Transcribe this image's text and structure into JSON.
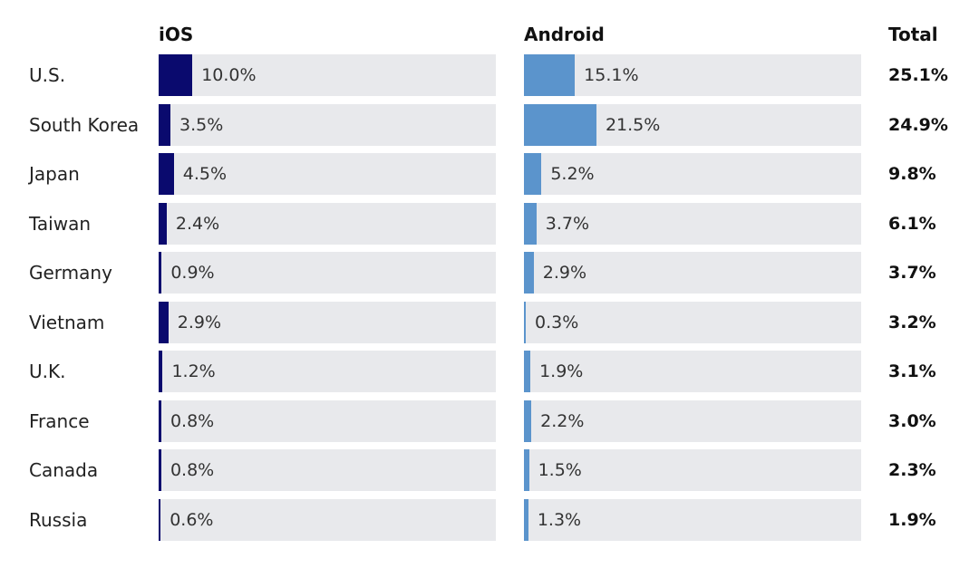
{
  "colors": {
    "ios": "#0a0a6e",
    "android": "#5b94cc",
    "track": "#e8e9ec"
  },
  "chart_data": {
    "type": "bar",
    "column_headers": {
      "ios": "iOS",
      "android": "Android",
      "total": "Total"
    },
    "categories": [
      "U.S.",
      "South Korea",
      "Japan",
      "Taiwan",
      "Germany",
      "Vietnam",
      "U.K.",
      "France",
      "Canada",
      "Russia"
    ],
    "series": [
      {
        "name": "iOS",
        "values": [
          10.0,
          3.5,
          4.5,
          2.4,
          0.9,
          2.9,
          1.2,
          0.8,
          0.8,
          0.6
        ],
        "labels": [
          "10.0%",
          "3.5%",
          "4.5%",
          "2.4%",
          "0.9%",
          "2.9%",
          "1.2%",
          "0.8%",
          "0.8%",
          "0.6%"
        ]
      },
      {
        "name": "Android",
        "values": [
          15.1,
          21.5,
          5.2,
          3.7,
          2.9,
          0.3,
          1.9,
          2.2,
          1.5,
          1.3
        ],
        "labels": [
          "15.1%",
          "21.5%",
          "5.2%",
          "3.7%",
          "2.9%",
          "0.3%",
          "1.9%",
          "2.2%",
          "1.5%",
          "1.3%"
        ]
      }
    ],
    "totals": {
      "values": [
        25.1,
        24.9,
        9.8,
        6.1,
        3.7,
        3.2,
        3.1,
        3.0,
        2.3,
        1.9
      ],
      "labels": [
        "25.1%",
        "24.9%",
        "9.8%",
        "6.1%",
        "3.7%",
        "3.2%",
        "3.1%",
        "3.0%",
        "2.3%",
        "1.9%"
      ]
    },
    "xlim": [
      0,
      100
    ],
    "grid": false,
    "legend": "none"
  }
}
